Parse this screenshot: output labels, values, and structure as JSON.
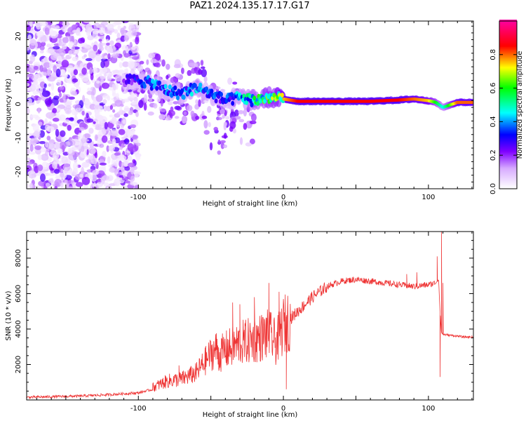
{
  "title": "PAZ1.2024.135.17.17.G17",
  "chart_data": [
    {
      "type": "heatmap",
      "title": "PAZ1.2024.135.17.17.G17",
      "xlabel": "Height of straight line (km)",
      "ylabel": "Frequency (Hz)",
      "xlim": [
        -177,
        131
      ],
      "ylim": [
        -25,
        24.5
      ],
      "xticks": [
        -100,
        0,
        100
      ],
      "yticks": [
        -20,
        -10,
        0,
        10,
        20
      ],
      "colorbar": {
        "label": "Normalized spectral amplitude",
        "range": [
          0,
          1
        ],
        "ticks": [
          0.0,
          0.2,
          0.4,
          0.6,
          0.8
        ],
        "colors": [
          "#ffffff",
          "#8000ff",
          "#0000ff",
          "#00ffff",
          "#00ff00",
          "#ffff00",
          "#ff0000",
          "#ff00a0"
        ]
      },
      "ridge": {
        "x": [
          -110,
          -100,
          -90,
          -80,
          -70,
          -60,
          -50,
          -40,
          -30,
          -20,
          -10,
          0,
          10,
          20,
          40,
          60,
          80,
          90,
          100,
          105,
          110,
          120,
          131
        ],
        "y": [
          7,
          7,
          6,
          4,
          3,
          5,
          3,
          1,
          2,
          1,
          2,
          1.5,
          0.8,
          0.8,
          0.8,
          0.8,
          1.2,
          1.5,
          1,
          0.5,
          -1,
          0.5,
          0.5
        ],
        "amplitude": [
          0.25,
          0.35,
          0.4,
          0.4,
          0.4,
          0.45,
          0.4,
          0.35,
          0.45,
          0.55,
          0.65,
          0.75,
          0.85,
          0.85,
          0.85,
          0.85,
          0.85,
          0.8,
          0.75,
          0.6,
          0.45,
          0.8,
          0.8
        ]
      }
    },
    {
      "type": "line",
      "xlabel": "Height of straight line (km)",
      "ylabel": "SNR (10 * v/v)",
      "xlim": [
        -177,
        131
      ],
      "ylim": [
        0,
        9500
      ],
      "xticks": [
        -100,
        0,
        100
      ],
      "yticks": [
        2000,
        4000,
        6000,
        8000
      ],
      "color": "#ee3333",
      "series": [
        {
          "x": [
            -177,
            -160,
            -140,
            -120,
            -100,
            -90,
            -80,
            -70,
            -60,
            -50,
            -40,
            -30,
            -20,
            -10,
            -5,
            0,
            10,
            20,
            30,
            40,
            50,
            60,
            70,
            80,
            90,
            100,
            105,
            107,
            108,
            109,
            110,
            115,
            120,
            125,
            131
          ],
          "y": [
            150,
            180,
            220,
            300,
            400,
            600,
            900,
            1000,
            1300,
            2200,
            2800,
            3200,
            3400,
            3700,
            3200,
            4200,
            5000,
            5800,
            6400,
            6700,
            6800,
            6700,
            6600,
            6500,
            6400,
            6500,
            6600,
            6800,
            5000,
            3800,
            3700,
            3650,
            3600,
            3550,
            3550
          ]
        }
      ],
      "spikes": [
        {
          "x": -72,
          "y": 1950
        },
        {
          "x": -50,
          "y": 3000
        },
        {
          "x": -35,
          "y": 5500
        },
        {
          "x": -30,
          "y": 5400
        },
        {
          "x": -20,
          "y": 5800
        },
        {
          "x": -10,
          "y": 6600
        },
        {
          "x": -3,
          "y": 6100
        },
        {
          "x": 2,
          "y": 600
        },
        {
          "x": 85,
          "y": 7100
        },
        {
          "x": 92,
          "y": 7200
        },
        {
          "x": 106,
          "y": 8100
        },
        {
          "x": 108,
          "y": 1300
        },
        {
          "x": 109,
          "y": 9500
        },
        {
          "x": 110,
          "y": 6600
        }
      ]
    }
  ]
}
